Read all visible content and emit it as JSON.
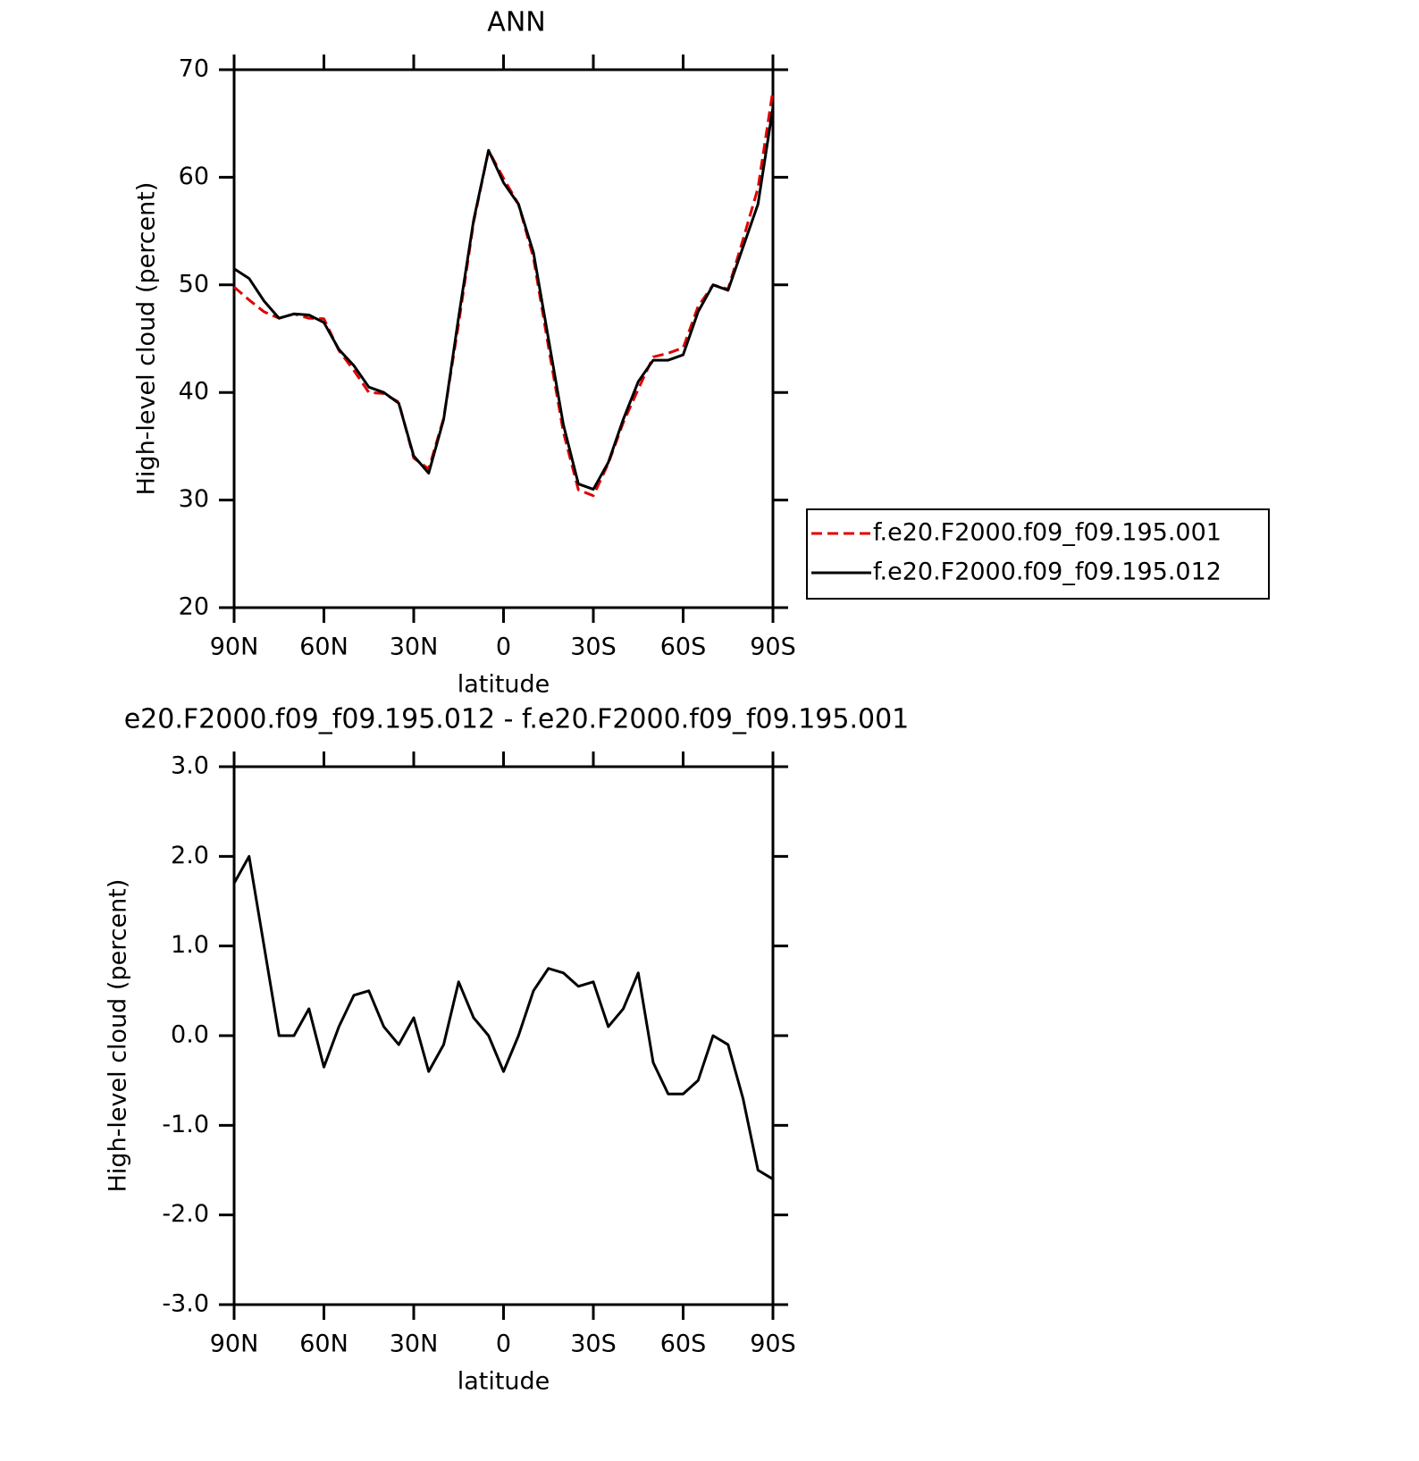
{
  "chart_data": [
    {
      "type": "line",
      "title": "ANN",
      "ylabel": "High-level cloud (percent)",
      "xlabel": "latitude",
      "x": [
        90,
        85,
        80,
        75,
        70,
        65,
        60,
        55,
        50,
        45,
        40,
        35,
        30,
        25,
        20,
        15,
        10,
        5,
        0,
        -5,
        -10,
        -15,
        -20,
        -25,
        -30,
        -35,
        -40,
        -45,
        -50,
        -55,
        -60,
        -65,
        -70,
        -75,
        -80,
        -85,
        -90
      ],
      "xlim": [
        90,
        -90
      ],
      "xticks": [
        {
          "value": 90,
          "label": "90N"
        },
        {
          "value": 60,
          "label": "60N"
        },
        {
          "value": 30,
          "label": "30N"
        },
        0,
        {
          "value": -30,
          "label": "30S"
        },
        {
          "value": -60,
          "label": "60S"
        },
        {
          "value": -90,
          "label": "90S"
        }
      ],
      "ylim": [
        20,
        70
      ],
      "yticks": [
        20,
        30,
        40,
        50,
        60,
        70
      ],
      "legend": "right",
      "series": [
        {
          "name": "f.e20.F2000.f09_f09.195.001",
          "color": "#e00000",
          "style": "dashed",
          "values": [
            49.8,
            48.6,
            47.5,
            46.9,
            47.3,
            46.9,
            46.85,
            43.9,
            42.05,
            40.0,
            39.9,
            39.1,
            33.9,
            32.9,
            37.6,
            46.4,
            55.8,
            62.5,
            59.9,
            57.5,
            52.5,
            44.25,
            36.3,
            30.95,
            30.4,
            33.4,
            37.2,
            40.3,
            43.3,
            43.65,
            44.15,
            48.0,
            50.0,
            49.6,
            54.2,
            59.0,
            68.1
          ]
        },
        {
          "name": "f.e20.F2000.f09_f09.195.012",
          "color": "#000000",
          "style": "solid",
          "values": [
            51.5,
            50.6,
            48.5,
            46.9,
            47.3,
            47.2,
            46.5,
            44.0,
            42.5,
            40.5,
            40.0,
            39.0,
            34.1,
            32.5,
            37.5,
            47.0,
            56.0,
            62.5,
            59.5,
            57.5,
            53.0,
            45.0,
            37.0,
            31.5,
            31.0,
            33.5,
            37.5,
            41.0,
            43.0,
            43.0,
            43.5,
            47.5,
            50.0,
            49.5,
            53.5,
            57.5,
            66.5
          ]
        }
      ]
    },
    {
      "type": "line",
      "title": "e20.F2000.f09_f09.195.012 - f.e20.F2000.f09_f09.195.001",
      "ylabel": "High-level cloud (percent)",
      "xlabel": "latitude",
      "x": [
        90,
        85,
        80,
        75,
        70,
        65,
        60,
        55,
        50,
        45,
        40,
        35,
        30,
        25,
        20,
        15,
        10,
        5,
        0,
        -5,
        -10,
        -15,
        -20,
        -25,
        -30,
        -35,
        -40,
        -45,
        -50,
        -55,
        -60,
        -65,
        -70,
        -75,
        -80,
        -85,
        -90
      ],
      "xlim": [
        90,
        -90
      ],
      "xticks": [
        {
          "value": 90,
          "label": "90N"
        },
        {
          "value": 60,
          "label": "60N"
        },
        {
          "value": 30,
          "label": "30N"
        },
        0,
        {
          "value": -30,
          "label": "30S"
        },
        {
          "value": -60,
          "label": "60S"
        },
        {
          "value": -90,
          "label": "90S"
        }
      ],
      "ylim": [
        -3,
        3
      ],
      "yticks": [
        {
          "value": -3,
          "label": "-3.0"
        },
        {
          "value": -2,
          "label": "-2.0"
        },
        {
          "value": -1,
          "label": "-1.0"
        },
        {
          "value": 0,
          "label": "0.0"
        },
        {
          "value": 1,
          "label": "1.0"
        },
        {
          "value": 2,
          "label": "2.0"
        },
        {
          "value": 3,
          "label": "3.0"
        }
      ],
      "series": [
        {
          "color": "#000000",
          "style": "solid",
          "values": [
            1.7,
            2.0,
            1.0,
            0.0,
            0.0,
            0.3,
            -0.35,
            0.1,
            0.45,
            0.5,
            0.1,
            -0.1,
            0.2,
            -0.4,
            -0.1,
            0.6,
            0.2,
            0.0,
            -0.4,
            0.0,
            0.5,
            0.75,
            0.7,
            0.55,
            0.6,
            0.1,
            0.3,
            0.7,
            -0.3,
            -0.65,
            -0.65,
            -0.5,
            0.0,
            -0.1,
            -0.7,
            -1.5,
            -1.6
          ]
        }
      ]
    }
  ]
}
